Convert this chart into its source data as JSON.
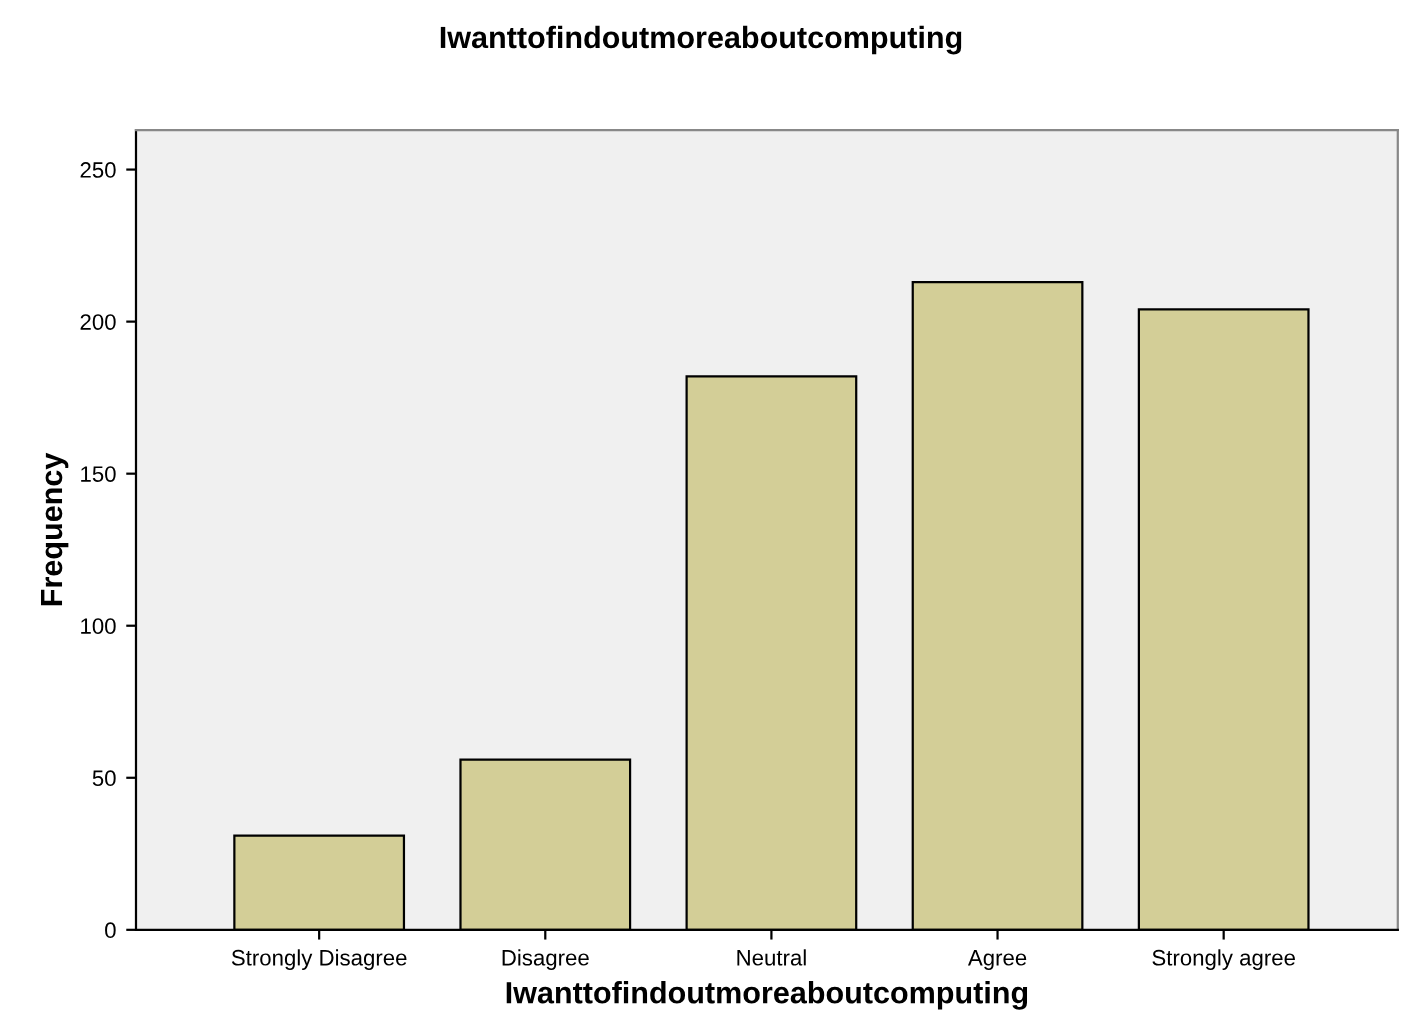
{
  "chart_data": {
    "type": "bar",
    "title": "Iwanttofindoutmoreaboutcomputing",
    "xlabel": "Iwanttofindoutmoreaboutcomputing",
    "ylabel": "Frequency",
    "categories": [
      "Strongly Disagree",
      "Disagree",
      "Neutral",
      "Agree",
      "Strongly agree"
    ],
    "values": [
      31,
      56,
      182,
      213,
      204
    ],
    "color": "#d3ce97",
    "ylim": [
      0,
      263
    ],
    "yticks": [
      0,
      50,
      100,
      150,
      200,
      250
    ],
    "grid": false
  }
}
